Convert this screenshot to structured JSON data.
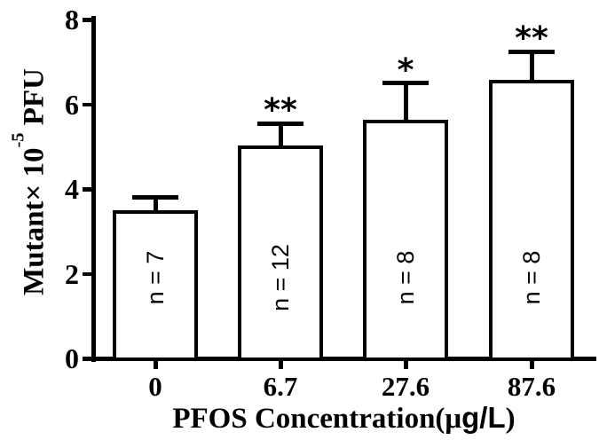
{
  "figure": {
    "background_color": "#ffffff",
    "ink_color": "#000000"
  },
  "chart_data": {
    "type": "bar",
    "title": "",
    "categories": [
      "0",
      "6.7",
      "27.6",
      "87.6"
    ],
    "values": [
      3.45,
      5.0,
      5.6,
      6.55
    ],
    "error_sd_upper": [
      0.35,
      0.55,
      0.9,
      0.7
    ],
    "error_bar_tops": [
      3.8,
      5.55,
      6.5,
      7.25
    ],
    "n_labels": [
      "n = 7",
      "n = 12",
      "n = 8",
      "n = 8"
    ],
    "significance": [
      "",
      "**",
      "*",
      "**"
    ],
    "xlabel": {
      "full": "PFOS Concentration(μg/L)",
      "serif_prefix": "PFOS Concentration(",
      "mu": "μ",
      "sans_unit": "g/L",
      "serif_suffix": ")"
    },
    "ylabel": {
      "full": "Mutant× 10⁻⁵ PFU",
      "prefix": "Mutant× 10",
      "superscript": "-5",
      "suffix": " PFU"
    },
    "ylim": [
      0,
      8
    ],
    "yticks": [
      0,
      2,
      4,
      6,
      8
    ],
    "grid": false,
    "legend": null,
    "bar_fill_color": "#ffffff",
    "bar_border_color": "#000000"
  }
}
